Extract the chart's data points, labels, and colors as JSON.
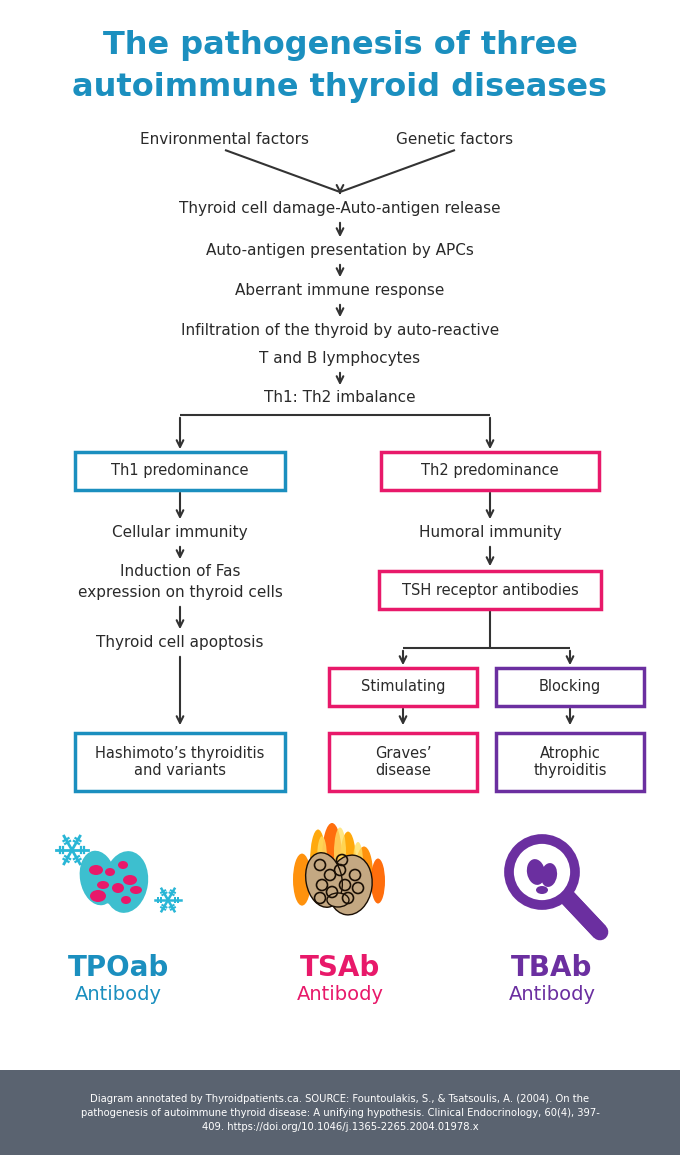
{
  "title_line1": "The pathogenesis of three",
  "title_line2": "autoimmune thyroid diseases",
  "title_color": "#1B8FBF",
  "background_color": "#FFFFFF",
  "footer_bg": "#5A6370",
  "footer_text": "Diagram annotated by Thyroidpatients.ca. SOURCE: Fountoulakis, S., & Tsatsoulis, A. (2004). On the\npathogenesis of autoimmune thyroid disease: A unifying hypothesis. Clinical Endocrinology, 60(4), 397-\n409. https://doi.org/10.1046/j.1365-2265.2004.01978.x",
  "flow_text_color": "#2a2a2a",
  "box_blue_color": "#1B8FBF",
  "box_pink_color": "#E8196A",
  "box_purple_color": "#6B2FA0",
  "tpoab_color": "#1B8FBF",
  "tsab_color": "#E8196A",
  "tbab_color": "#6B2FA0",
  "arrow_color": "#333333",
  "figsize": [
    6.8,
    11.55
  ],
  "dpi": 100
}
